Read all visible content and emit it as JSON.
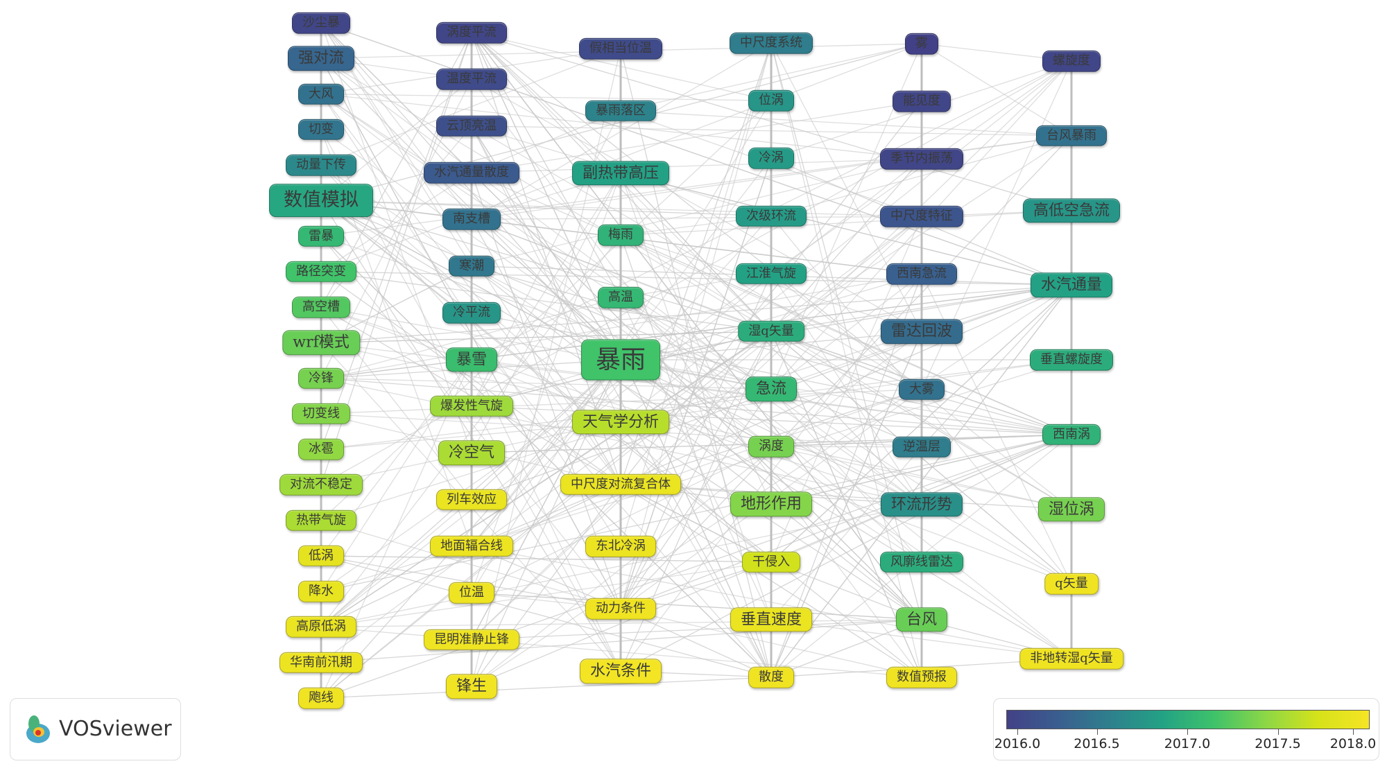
{
  "columns": [
    [
      "沙尘暴",
      "强对流",
      "大风",
      "切变",
      "动量下传",
      "数值模拟",
      "雷暴",
      "路径突变",
      "高空槽",
      "wrf模式",
      "冷锋",
      "切变线",
      "冰雹",
      "对流不稳定",
      "热带气旋",
      "低涡",
      "降水",
      "高原低涡",
      "华南前汛期",
      "飑线"
    ],
    [
      "涡度平流",
      "温度平流",
      "云顶亮温",
      "水汽通量散度",
      "南支槽",
      "寒潮",
      "冷平流",
      "暴雪",
      "爆发性气旋",
      "冷空气",
      "列车效应",
      "地面辐合线",
      "位温",
      "昆明准静止锋",
      "锋生"
    ],
    [
      "假相当位温",
      "暴雨落区",
      "副热带高压",
      "梅雨",
      "高温",
      "暴雨",
      "天气学分析",
      "中尺度对流复合体",
      "东北冷涡",
      "动力条件",
      "水汽条件"
    ],
    [
      "中尺度系统",
      "位涡",
      "冷涡",
      "次级环流",
      "江淮气旋",
      "湿q矢量",
      "急流",
      "涡度",
      "地形作用",
      "干侵入",
      "垂直速度",
      "散度"
    ],
    [
      "雾",
      "能见度",
      "季节内振荡",
      "中尺度特征",
      "西南急流",
      "雷达回波",
      "大雾",
      "逆温层",
      "环流形势",
      "风廓线雷达",
      "台风",
      "数值预报"
    ],
    [
      "螺旋度",
      "台风暴雨",
      "高低空急流",
      "水汽通量",
      "垂直螺旋度",
      "西南涡",
      "湿位涡",
      "q矢量",
      "非地转湿q矢量"
    ]
  ],
  "node_years": [
    [
      2016.05,
      2016.35,
      2016.45,
      2016.48,
      2016.65,
      2016.9,
      2017.05,
      2017.15,
      2017.22,
      2017.3,
      2017.35,
      2017.4,
      2017.45,
      2017.5,
      2017.55,
      2017.85,
      2017.88,
      2017.9,
      2017.92,
      2017.95
    ],
    [
      2016.05,
      2016.1,
      2016.15,
      2016.25,
      2016.45,
      2016.5,
      2016.75,
      2017.1,
      2017.5,
      2017.55,
      2017.9,
      2017.92,
      2017.93,
      2017.94,
      2017.96
    ],
    [
      2016.1,
      2016.6,
      2016.85,
      2017.0,
      2017.05,
      2017.15,
      2017.6,
      2017.9,
      2017.92,
      2017.95,
      2017.97
    ],
    [
      2016.55,
      2016.75,
      2016.8,
      2016.8,
      2016.85,
      2016.95,
      2017.05,
      2017.35,
      2017.4,
      2017.7,
      2017.9,
      2017.95
    ],
    [
      2016.0,
      2016.05,
      2016.05,
      2016.2,
      2016.3,
      2016.4,
      2016.45,
      2016.55,
      2016.7,
      2016.95,
      2017.3,
      2017.95
    ],
    [
      2016.05,
      2016.45,
      2016.75,
      2016.85,
      2016.95,
      2017.0,
      2017.35,
      2017.95,
      2017.95
    ]
  ],
  "node_weights": [
    [
      1,
      2,
      1,
      1,
      1,
      3,
      1,
      1,
      1,
      2,
      1,
      1,
      1,
      1,
      1,
      1,
      1,
      1,
      1,
      1
    ],
    [
      1,
      1,
      1,
      1,
      1,
      1,
      1,
      2,
      1,
      2,
      1,
      1,
      1,
      1,
      2
    ],
    [
      1,
      1,
      2,
      1,
      1,
      4,
      2,
      1,
      1,
      1,
      2
    ],
    [
      1,
      1,
      1,
      1,
      1,
      1,
      2,
      1,
      2,
      1,
      2,
      1
    ],
    [
      1,
      1,
      1,
      1,
      1,
      2,
      1,
      1,
      2,
      1,
      2,
      1
    ],
    [
      1,
      1,
      2,
      2,
      1,
      1,
      2,
      1,
      1
    ]
  ],
  "legend": {
    "ticks": [
      "2016.0",
      "2016.5",
      "2017.0",
      "2017.5",
      "2018.0"
    ]
  },
  "brand": "VOSviewer",
  "colors": {
    "gradient": [
      "#424187",
      "#3a5e8f",
      "#2e808d",
      "#23a285",
      "#3ec26a",
      "#8cd746",
      "#d5e21a",
      "#f6e524"
    ],
    "edge": "#c8c8c8"
  }
}
